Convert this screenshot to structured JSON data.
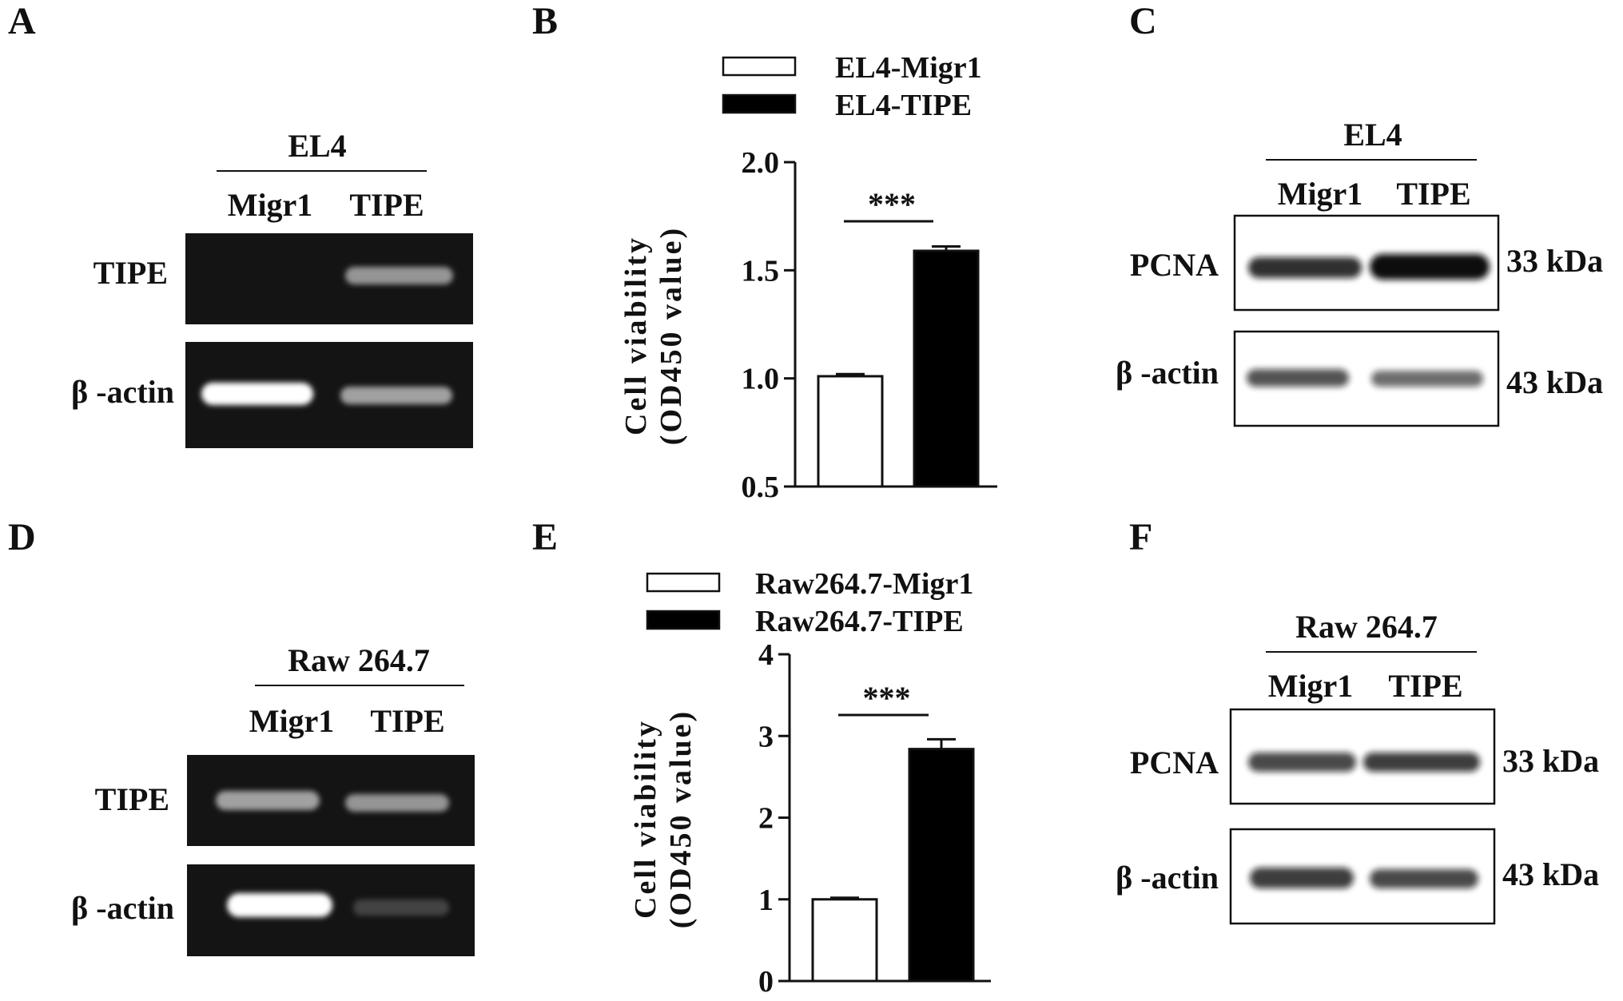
{
  "figure": {
    "panels": [
      {
        "letter": "A",
        "type": "gel",
        "header": "EL4",
        "lanes": [
          "Migr1",
          "TIPE"
        ],
        "rows": [
          {
            "label": "TIPE",
            "bands": [
              0.0,
              0.55
            ]
          },
          {
            "label": "β -actin",
            "bands": [
              1.0,
              0.6
            ]
          }
        ]
      },
      {
        "letter": "C",
        "type": "blot",
        "header": "EL4",
        "lanes": [
          "Migr1",
          "TIPE"
        ],
        "rows": [
          {
            "label": "PCNA",
            "size": "33 kDa",
            "bands": [
              0.85,
              1.0
            ]
          },
          {
            "label": "β -actin",
            "size": "43 kDa",
            "bands": [
              0.7,
              0.6
            ]
          }
        ]
      },
      {
        "letter": "D",
        "type": "gel",
        "header": "Raw 264.7",
        "lanes": [
          "Migr1",
          "TIPE"
        ],
        "rows": [
          {
            "label": "TIPE",
            "bands": [
              0.6,
              0.55
            ]
          },
          {
            "label": "β -actin",
            "bands": [
              1.0,
              0.2
            ]
          }
        ]
      },
      {
        "letter": "F",
        "type": "blot",
        "header": "Raw 264.7",
        "lanes": [
          "Migr1",
          "TIPE"
        ],
        "rows": [
          {
            "label": "PCNA",
            "size": "33 kDa",
            "bands": [
              0.75,
              0.8
            ]
          },
          {
            "label": "β -actin",
            "size": "43 kDa",
            "bands": [
              0.8,
              0.75
            ]
          }
        ]
      }
    ]
  },
  "chart_data": [
    {
      "panel": "B",
      "type": "bar",
      "categories": [
        "EL4-Migr1",
        "EL4-TIPE"
      ],
      "values": [
        1.01,
        1.59
      ],
      "errors": [
        0.01,
        0.02
      ],
      "fills": [
        "#ffffff",
        "#000000"
      ],
      "ylabel": "Cell viability (OD450 value)",
      "ylabel_lines": [
        "Cell viability",
        "(OD450 value)"
      ],
      "ylim": [
        0.5,
        2.0
      ],
      "yticks": [
        "0.5",
        "1.0",
        "1.5",
        "2.0"
      ],
      "significance": "***",
      "legend": "top"
    },
    {
      "panel": "E",
      "type": "bar",
      "categories": [
        "Raw264.7-Migr1",
        "Raw264.7-TIPE"
      ],
      "values": [
        1.0,
        2.84
      ],
      "errors": [
        0.02,
        0.12
      ],
      "fills": [
        "#ffffff",
        "#000000"
      ],
      "ylabel": "Cell viability (OD450 value)",
      "ylabel_lines": [
        "Cell viability",
        "(OD450 value)"
      ],
      "ylim": [
        0,
        4
      ],
      "yticks": [
        "0",
        "1",
        "2",
        "3",
        "4"
      ],
      "significance": "***",
      "legend": "top"
    }
  ]
}
